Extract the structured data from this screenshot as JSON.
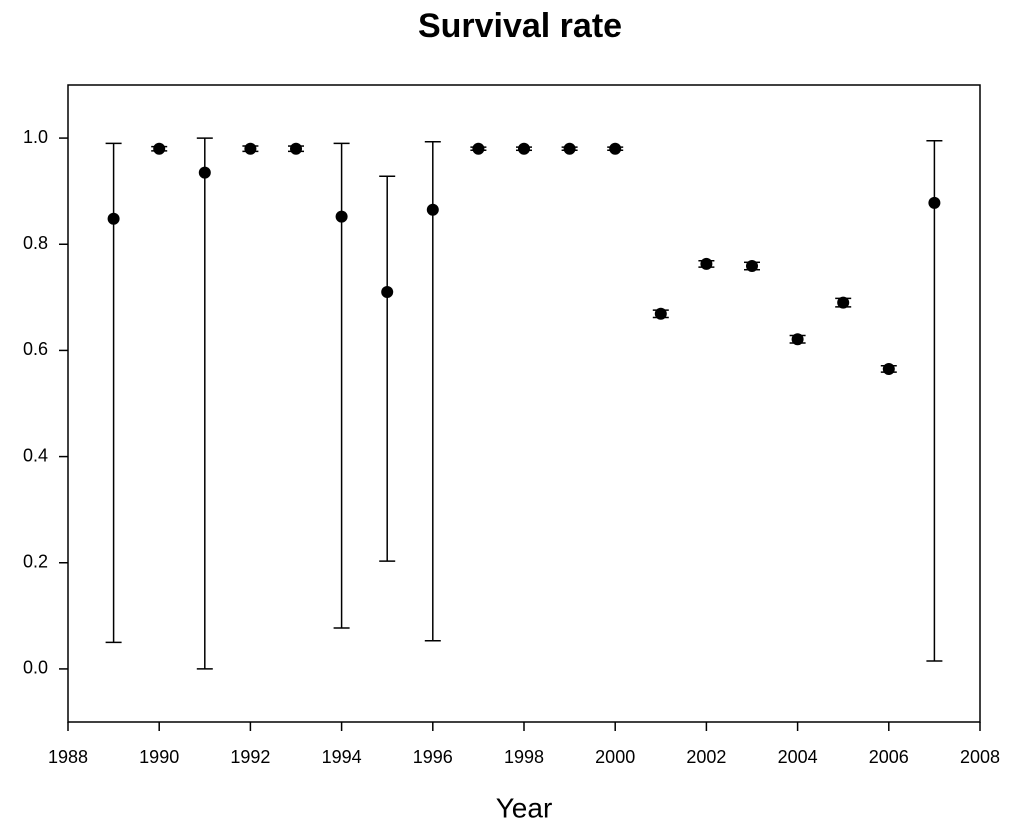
{
  "chart_data": {
    "type": "scatter",
    "title": "Survival rate",
    "x_label": "Year",
    "color": "#000000",
    "x": [
      1989,
      1990,
      1991,
      1992,
      1993,
      1994,
      1995,
      1996,
      1997,
      1998,
      1999,
      2000,
      2001,
      2002,
      2003,
      2004,
      2005,
      2006,
      2007
    ],
    "values": [
      0.848,
      0.98,
      0.935,
      0.98,
      0.98,
      0.852,
      0.71,
      0.865,
      0.98,
      0.98,
      0.98,
      0.98,
      0.669,
      0.763,
      0.759,
      0.621,
      0.69,
      0.565,
      0.878
    ],
    "lower": [
      0.05,
      0.976,
      0.0,
      0.975,
      0.975,
      0.077,
      0.203,
      0.053,
      0.977,
      0.977,
      0.977,
      0.977,
      0.662,
      0.757,
      0.752,
      0.614,
      0.682,
      0.559,
      0.015
    ],
    "upper": [
      0.99,
      0.984,
      1.0,
      0.985,
      0.985,
      0.99,
      0.928,
      0.993,
      0.983,
      0.983,
      0.983,
      0.983,
      0.676,
      0.769,
      0.766,
      0.628,
      0.698,
      0.571,
      0.995
    ],
    "xlim": [
      1988,
      2008
    ],
    "ylim": [
      -0.1,
      1.1
    ],
    "xticks": [
      1988,
      1990,
      1992,
      1994,
      1996,
      1998,
      2000,
      2002,
      2004,
      2006,
      2008
    ],
    "yticks": [
      {
        "value": 0,
        "label": "0.0"
      },
      0.2,
      0.4,
      0.6,
      0.8,
      {
        "value": 1,
        "label": "1.0"
      }
    ]
  }
}
